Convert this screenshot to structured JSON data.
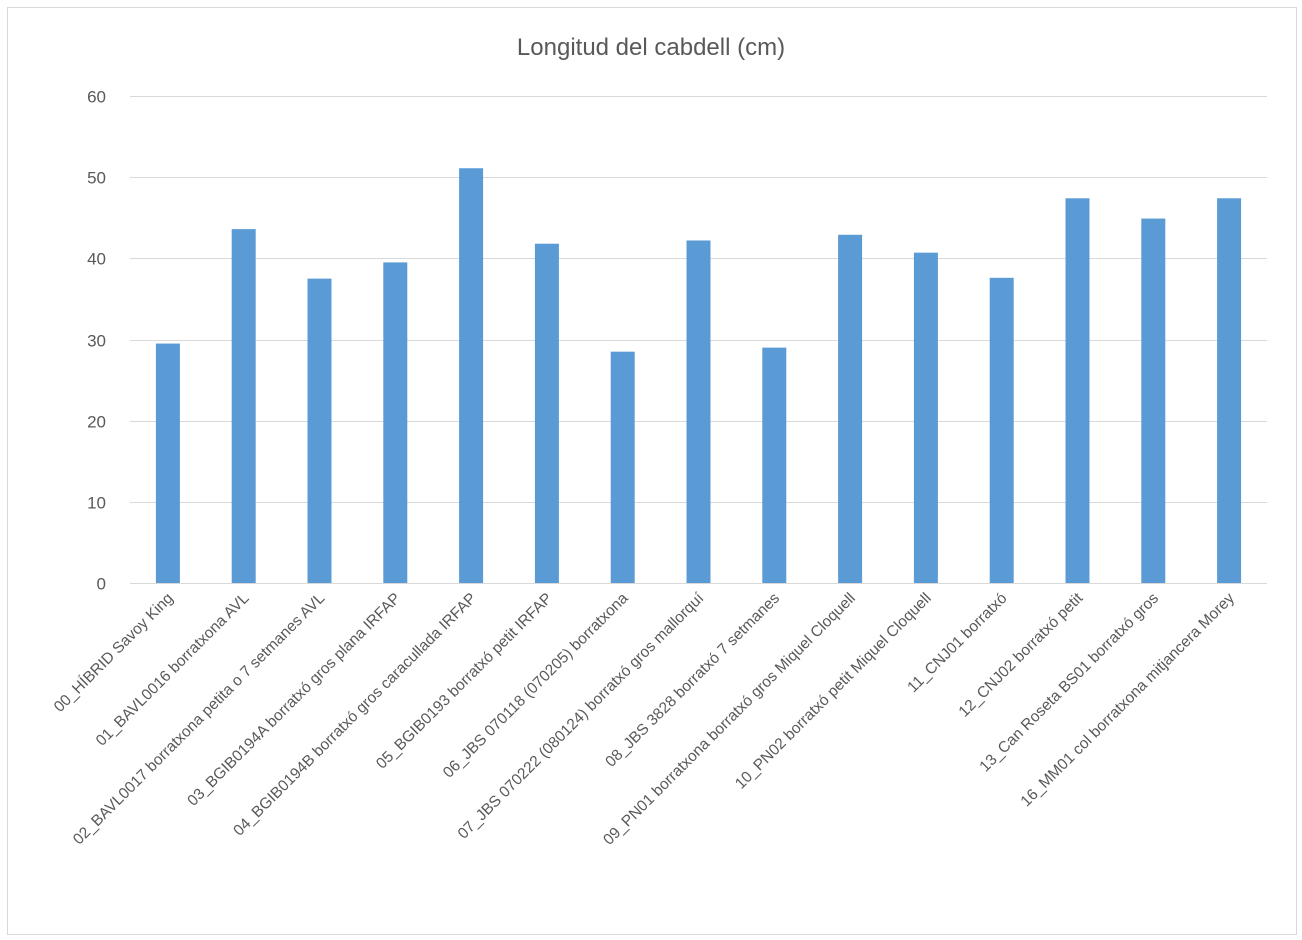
{
  "chart_data": {
    "type": "bar",
    "title": "Longitud del cabdell (cm)",
    "xlabel": "",
    "ylabel": "",
    "ylim": [
      0,
      60
    ],
    "yticks": [
      0,
      10,
      20,
      30,
      40,
      50,
      60
    ],
    "grid": true,
    "legend": "none",
    "bar_color": "#5b9bd5",
    "grid_color": "#d9d9d9",
    "text_color": "#595959",
    "categories": [
      "00_HÍBRID Savoy King",
      "01_BAVL0016 borratxona AVL",
      "02_BAVL0017 borratxona petita o 7 setmanes AVL",
      "03_BGIB0194A borratxó gros plana IRFAP",
      "04_BGIB0194B borratxó gros caracullada IRFAP",
      "05_BGIB0193 borratxó petit IRFAP",
      "06_JBS 070118 (070205) borratxona",
      "07_JBS 070222 (080124) borratxó gros mallorquí",
      "08_JBS 3828 borratxó 7 setmanes",
      "09_PN01 borratxona borratxó gros Miquel Cloquell",
      "10_PN02 borratxó petit Miquel Cloquell",
      "11_CNJ01 borratxó",
      "12_CNJ02 borratxó petit",
      "13_Can Roseta BS01 borratxó gros",
      "16_MM01 col borratxona mitjancera Morey"
    ],
    "values": [
      29.5,
      43.6,
      37.5,
      39.5,
      51.1,
      41.8,
      28.5,
      42.2,
      29.0,
      42.9,
      40.7,
      37.6,
      47.4,
      44.9,
      47.4
    ]
  }
}
